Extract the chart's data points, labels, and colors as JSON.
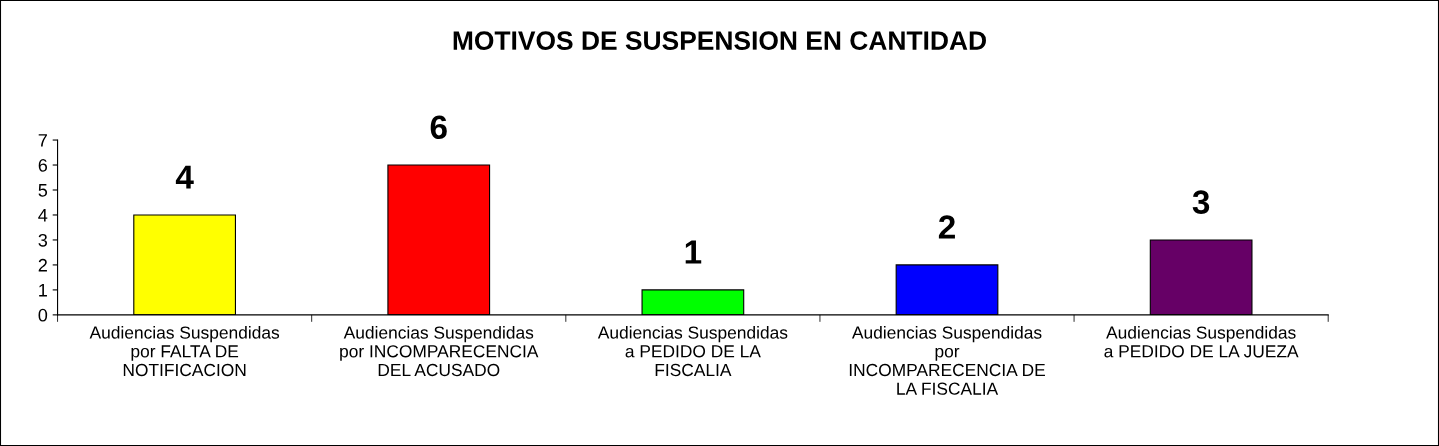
{
  "chart_data": {
    "type": "bar",
    "title": "MOTIVOS DE SUSPENSION EN CANTIDAD",
    "categories": [
      "Audiencias Suspendidas\npor FALTA DE\nNOTIFICACION",
      "Audiencias Suspendidas\npor INCOMPARECENCIA\nDEL ACUSADO",
      "Audiencias Suspendidas\na PEDIDO DE LA\nFISCALIA",
      "Audiencias Suspendidas\npor\nINCOMPARECENCIA DE\nLA FISCALIA",
      "Audiencias Suspendidas\na PEDIDO DE LA JUEZA"
    ],
    "values": [
      4,
      6,
      1,
      2,
      3
    ],
    "colors": [
      "#ffff00",
      "#ff0000",
      "#00ff00",
      "#0000ff",
      "#660066"
    ],
    "ylim": [
      0,
      7
    ],
    "yticks": [
      0,
      1,
      2,
      3,
      4,
      5,
      6,
      7
    ],
    "data_labels": true,
    "grid": false,
    "legend": false
  }
}
